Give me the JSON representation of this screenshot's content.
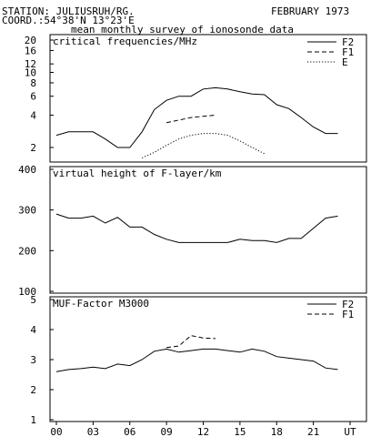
{
  "header": {
    "station": "STATION: JULIUSRUH/RG.",
    "coord": "COORD.:54°38'N 13°23'E",
    "date": "FEBRUARY 1973",
    "subtitle": "mean monthly survey of ionosonde data"
  },
  "x_axis": {
    "ticks": [
      "00",
      "03",
      "06",
      "09",
      "12",
      "15",
      "18",
      "21",
      "UT"
    ],
    "tick_hours": [
      0,
      3,
      6,
      9,
      12,
      15,
      18,
      21,
      24
    ]
  },
  "chart_data": [
    {
      "type": "line",
      "title": "critical frequencies/MHz",
      "y_scale": "log",
      "ylim": [
        1.5,
        20
      ],
      "yticks": [
        2,
        4,
        6,
        8,
        10,
        12,
        16,
        20
      ],
      "legend_placement": "top-right",
      "series": [
        {
          "name": "F2",
          "style": "solid",
          "x": [
            0,
            1,
            2,
            3,
            4,
            5,
            6,
            7,
            8,
            9,
            10,
            11,
            12,
            13,
            14,
            15,
            16,
            17,
            18,
            19,
            20,
            21,
            22,
            23
          ],
          "y": [
            2.6,
            2.8,
            2.8,
            2.8,
            2.4,
            2.0,
            2.0,
            2.8,
            4.5,
            5.5,
            6.0,
            6.0,
            7.0,
            7.2,
            7.0,
            6.6,
            6.3,
            6.2,
            5.0,
            4.6,
            3.8,
            3.1,
            2.7,
            2.7
          ]
        },
        {
          "name": "F1",
          "style": "dashed",
          "x": [
            9,
            10,
            11,
            12,
            13
          ],
          "y": [
            3.4,
            3.6,
            3.8,
            3.9,
            4.0
          ]
        },
        {
          "name": "E",
          "style": "dotted",
          "x": [
            7,
            8,
            9,
            10,
            11,
            12,
            13,
            14,
            15,
            16,
            17
          ],
          "y": [
            1.6,
            1.8,
            2.1,
            2.4,
            2.6,
            2.7,
            2.7,
            2.6,
            2.3,
            2.0,
            1.75
          ]
        }
      ]
    },
    {
      "type": "line",
      "title": "virtual height of F-layer/km",
      "ylim": [
        100,
        400
      ],
      "yticks": [
        100,
        200,
        300,
        400
      ],
      "series": [
        {
          "style": "solid",
          "x": [
            0,
            1,
            2,
            3,
            4,
            5,
            6,
            7,
            8,
            9,
            10,
            11,
            12,
            13,
            14,
            15,
            16,
            17,
            18,
            19,
            20,
            21,
            22,
            23
          ],
          "y": [
            290,
            280,
            280,
            285,
            268,
            282,
            258,
            258,
            240,
            228,
            220,
            220,
            220,
            220,
            220,
            228,
            225,
            225,
            220,
            230,
            230,
            255,
            280,
            285
          ]
        }
      ]
    },
    {
      "type": "line",
      "title": "MUF-Factor M3000",
      "ylim": [
        1,
        5
      ],
      "yticks": [
        1,
        2,
        3,
        4,
        5
      ],
      "legend_placement": "top-right",
      "series": [
        {
          "name": "F2",
          "style": "solid",
          "x": [
            0,
            1,
            2,
            3,
            4,
            5,
            6,
            7,
            8,
            9,
            10,
            11,
            12,
            13,
            14,
            15,
            16,
            17,
            18,
            19,
            20,
            21,
            22,
            23
          ],
          "y": [
            2.6,
            2.67,
            2.7,
            2.75,
            2.7,
            2.85,
            2.8,
            3.0,
            3.28,
            3.35,
            3.25,
            3.3,
            3.35,
            3.35,
            3.3,
            3.25,
            3.35,
            3.28,
            3.1,
            3.05,
            3.0,
            2.95,
            2.72,
            2.67
          ]
        },
        {
          "name": "F1",
          "style": "dashed",
          "x": [
            9,
            10,
            11,
            12,
            13
          ],
          "y": [
            3.4,
            3.45,
            3.8,
            3.72,
            3.7
          ]
        }
      ]
    }
  ]
}
